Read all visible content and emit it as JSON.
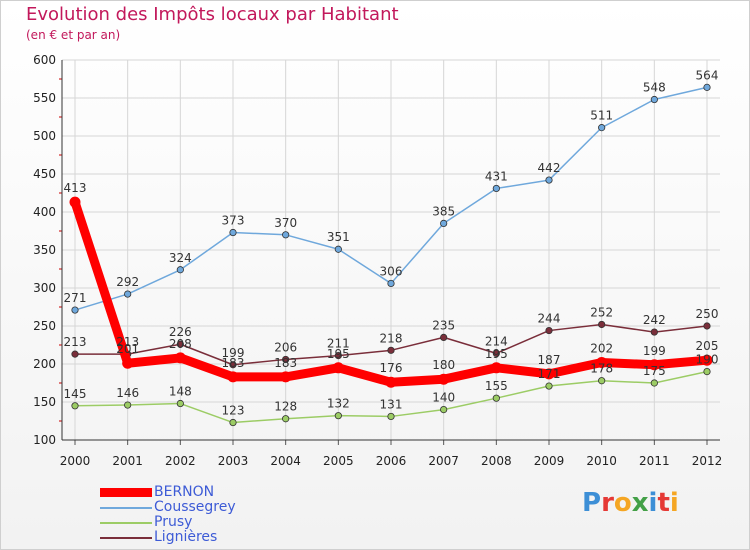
{
  "chart_data": {
    "type": "line",
    "title": "Evolution des Impôts locaux par Habitant",
    "subtitle": "(en € et par an)",
    "xlabel": "",
    "ylabel": "",
    "ylim": [
      100,
      600
    ],
    "yticks": [
      100,
      150,
      200,
      250,
      300,
      350,
      400,
      450,
      500,
      550,
      600
    ],
    "x": [
      "2000",
      "2001",
      "2002",
      "2003",
      "2004",
      "2005",
      "2006",
      "2007",
      "2008",
      "2009",
      "2010",
      "2011",
      "2012"
    ],
    "series": [
      {
        "name": "BERNON",
        "color": "#ff0000",
        "values": [
          413,
          201,
          208,
          183,
          183,
          195,
          176,
          180,
          195,
          187,
          202,
          199,
          205
        ],
        "labels": [
          "413",
          "201",
          "208",
          "183",
          "183",
          "195",
          "176",
          "180",
          "195",
          "187",
          "202",
          "199",
          "205"
        ]
      },
      {
        "name": "Coussegrey",
        "color": "#6fa8dc",
        "values": [
          271,
          292,
          324,
          373,
          370,
          351,
          306,
          385,
          431,
          442,
          511,
          548,
          564
        ],
        "labels": [
          "271",
          "292",
          "324",
          "373",
          "370",
          "351",
          "306",
          "385",
          "431",
          "442",
          "511",
          "548",
          "564"
        ]
      },
      {
        "name": "Prusy",
        "color": "#9ccc65",
        "values": [
          145,
          146,
          148,
          123,
          128,
          132,
          131,
          140,
          155,
          171,
          178,
          175,
          190
        ],
        "labels": [
          "145",
          "146",
          "148",
          "123",
          "128",
          "132",
          "131",
          "140",
          "155",
          "171",
          "178",
          "175",
          "190"
        ]
      },
      {
        "name": "Lignières",
        "color": "#7a2e3a",
        "values": [
          213,
          213,
          226,
          199,
          206,
          211,
          218,
          235,
          214,
          244,
          252,
          242,
          250
        ],
        "labels": [
          "213",
          "213",
          "226",
          "199",
          "206",
          "211",
          "218",
          "235",
          "214",
          "244",
          "252",
          "242",
          "250"
        ]
      }
    ]
  },
  "logo": {
    "letters": [
      "P",
      "r",
      "o",
      "x",
      "i",
      "t",
      "i"
    ],
    "colors": [
      "#3d8fd6",
      "#e53935",
      "#f5a623",
      "#43a047",
      "#3d8fd6",
      "#e53935",
      "#f5a623"
    ]
  }
}
